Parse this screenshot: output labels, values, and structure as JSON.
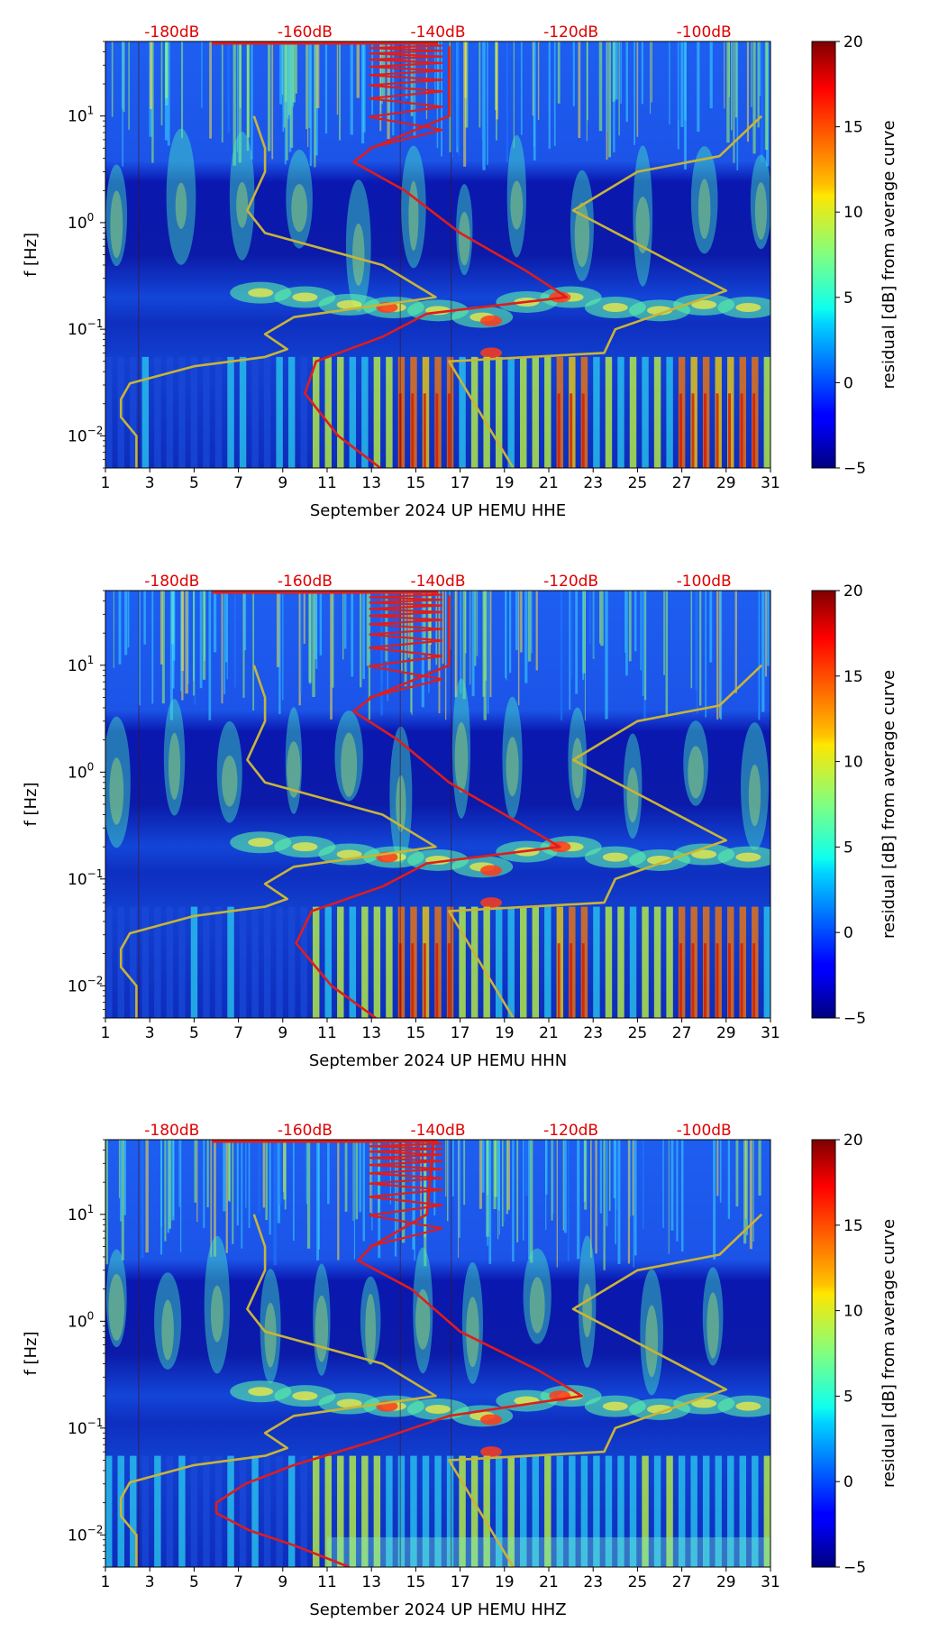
{
  "chart_data": [
    {
      "type": "heatmap",
      "title": "September 2024 UP HEMU HHE",
      "xlabel": "September 2024 UP HEMU  HHE",
      "ylabel": "f [Hz]",
      "x_ticks": [
        "1",
        "3",
        "5",
        "7",
        "9",
        "11",
        "13",
        "15",
        "17",
        "19",
        "21",
        "23",
        "25",
        "27",
        "29",
        "31"
      ],
      "y_ticks": [
        {
          "base": "10",
          "exp": "1",
          "value": 10
        },
        {
          "base": "10",
          "exp": "0",
          "value": 1
        },
        {
          "base": "10",
          "exp": "−1",
          "value": 0.1
        },
        {
          "base": "10",
          "exp": "−2",
          "value": 0.01
        }
      ],
      "xlim": [
        1,
        31
      ],
      "ylim": [
        0.005,
        50
      ],
      "top_axis_labels": [
        "-180dB",
        "-160dB",
        "-140dB",
        "-120dB",
        "-100dB"
      ],
      "colorbar": {
        "label": "residual [dB] from average curve",
        "ticks": [
          "20",
          "15",
          "10",
          "5",
          "0",
          "−5"
        ],
        "range": [
          -5,
          20
        ]
      },
      "series": [
        {
          "name": "noise model (yellow)",
          "color": "#c8b438",
          "points": [
            [
              2.4,
              0.005
            ],
            [
              2.4,
              0.01
            ],
            [
              1.7,
              0.015
            ],
            [
              1.7,
              0.022
            ],
            [
              2.1,
              0.031
            ],
            [
              5,
              0.045
            ],
            [
              8.2,
              0.055
            ],
            [
              9.2,
              0.065
            ],
            [
              8.2,
              0.09
            ],
            [
              9.5,
              0.13
            ],
            [
              15.9,
              0.2
            ],
            [
              13.5,
              0.4
            ],
            [
              8.2,
              0.8
            ],
            [
              7.4,
              1.3
            ],
            [
              8.2,
              3
            ],
            [
              8.2,
              5
            ],
            [
              7.7,
              10
            ]
          ]
        },
        {
          "name": "noise model right (yellow)",
          "color": "#c8b438",
          "points": [
            [
              19.4,
              0.005
            ],
            [
              16.5,
              0.05
            ],
            [
              23.5,
              0.06
            ],
            [
              24,
              0.1
            ],
            [
              29,
              0.23
            ],
            [
              22.1,
              1.3
            ],
            [
              25,
              3
            ],
            [
              28.7,
              4.2
            ],
            [
              30.6,
              10
            ]
          ]
        },
        {
          "name": "average curve (red)",
          "color": "#e01c1c",
          "points": [
            [
              13.4,
              0.005
            ],
            [
              11.5,
              0.01
            ],
            [
              10,
              0.025
            ],
            [
              10.5,
              0.05
            ],
            [
              13.5,
              0.085
            ],
            [
              15.5,
              0.14
            ],
            [
              21.8,
              0.2
            ],
            [
              20,
              0.35
            ],
            [
              17,
              0.8
            ],
            [
              14.5,
              2
            ],
            [
              12.2,
              3.7
            ],
            [
              13,
              5
            ],
            [
              16.5,
              10
            ],
            [
              16.5,
              45
            ]
          ]
        }
      ]
    },
    {
      "type": "heatmap",
      "title": "September 2024 UP HEMU HHN",
      "xlabel": "September 2024 UP HEMU  HHN",
      "ylabel": "f [Hz]",
      "x_ticks": [
        "1",
        "3",
        "5",
        "7",
        "9",
        "11",
        "13",
        "15",
        "17",
        "19",
        "21",
        "23",
        "25",
        "27",
        "29",
        "31"
      ],
      "y_ticks": [
        {
          "base": "10",
          "exp": "1",
          "value": 10
        },
        {
          "base": "10",
          "exp": "0",
          "value": 1
        },
        {
          "base": "10",
          "exp": "−1",
          "value": 0.1
        },
        {
          "base": "10",
          "exp": "−2",
          "value": 0.01
        }
      ],
      "xlim": [
        1,
        31
      ],
      "ylim": [
        0.005,
        50
      ],
      "top_axis_labels": [
        "-180dB",
        "-160dB",
        "-140dB",
        "-120dB",
        "-100dB"
      ],
      "colorbar": {
        "label": "residual [dB] from average curve",
        "ticks": [
          "20",
          "15",
          "10",
          "5",
          "0",
          "−5"
        ],
        "range": [
          -5,
          20
        ]
      },
      "series": [
        {
          "name": "noise model (yellow)",
          "color": "#c8b438",
          "points": [
            [
              2.4,
              0.005
            ],
            [
              2.4,
              0.01
            ],
            [
              1.7,
              0.015
            ],
            [
              1.7,
              0.022
            ],
            [
              2.1,
              0.031
            ],
            [
              5,
              0.045
            ],
            [
              8.2,
              0.055
            ],
            [
              9.2,
              0.065
            ],
            [
              8.2,
              0.09
            ],
            [
              9.5,
              0.13
            ],
            [
              15.9,
              0.2
            ],
            [
              13.5,
              0.4
            ],
            [
              8.2,
              0.8
            ],
            [
              7.4,
              1.3
            ],
            [
              8.2,
              3
            ],
            [
              8.2,
              5
            ],
            [
              7.7,
              10
            ]
          ]
        },
        {
          "name": "noise model right (yellow)",
          "color": "#c8b438",
          "points": [
            [
              19.4,
              0.005
            ],
            [
              16.5,
              0.05
            ],
            [
              23.5,
              0.06
            ],
            [
              24,
              0.1
            ],
            [
              29,
              0.23
            ],
            [
              22.1,
              1.3
            ],
            [
              25,
              3
            ],
            [
              28.7,
              4.2
            ],
            [
              30.6,
              10
            ]
          ]
        },
        {
          "name": "average curve (red)",
          "color": "#e01c1c",
          "points": [
            [
              13.2,
              0.005
            ],
            [
              11.2,
              0.01
            ],
            [
              9.6,
              0.025
            ],
            [
              10.3,
              0.05
            ],
            [
              13.5,
              0.085
            ],
            [
              15.5,
              0.14
            ],
            [
              21.5,
              0.2
            ],
            [
              19.5,
              0.35
            ],
            [
              16.5,
              0.8
            ],
            [
              14.2,
              2
            ],
            [
              12.2,
              3.7
            ],
            [
              13,
              5
            ],
            [
              16.5,
              10
            ],
            [
              16.5,
              45
            ]
          ]
        }
      ]
    },
    {
      "type": "heatmap",
      "title": "September 2024 UP HEMU HHZ",
      "xlabel": "September 2024 UP HEMU  HHZ",
      "ylabel": "f [Hz]",
      "x_ticks": [
        "1",
        "3",
        "5",
        "7",
        "9",
        "11",
        "13",
        "15",
        "17",
        "19",
        "21",
        "23",
        "25",
        "27",
        "29",
        "31"
      ],
      "y_ticks": [
        {
          "base": "10",
          "exp": "1",
          "value": 10
        },
        {
          "base": "10",
          "exp": "0",
          "value": 1
        },
        {
          "base": "10",
          "exp": "−1",
          "value": 0.1
        },
        {
          "base": "10",
          "exp": "−2",
          "value": 0.01
        }
      ],
      "xlim": [
        1,
        31
      ],
      "ylim": [
        0.005,
        50
      ],
      "top_axis_labels": [
        "-180dB",
        "-160dB",
        "-140dB",
        "-120dB",
        "-100dB"
      ],
      "colorbar": {
        "label": "residual [dB] from average curve",
        "ticks": [
          "20",
          "15",
          "10",
          "5",
          "0",
          "−5"
        ],
        "range": [
          -5,
          20
        ]
      },
      "series": [
        {
          "name": "noise model (yellow)",
          "color": "#c8b438",
          "points": [
            [
              2.4,
              0.005
            ],
            [
              2.4,
              0.01
            ],
            [
              1.7,
              0.015
            ],
            [
              1.7,
              0.022
            ],
            [
              2.1,
              0.031
            ],
            [
              5,
              0.045
            ],
            [
              8.2,
              0.055
            ],
            [
              9.2,
              0.065
            ],
            [
              8.2,
              0.09
            ],
            [
              9.5,
              0.13
            ],
            [
              15.9,
              0.2
            ],
            [
              13.5,
              0.4
            ],
            [
              8.2,
              0.8
            ],
            [
              7.4,
              1.3
            ],
            [
              8.2,
              3
            ],
            [
              8.2,
              5
            ],
            [
              7.7,
              10
            ]
          ]
        },
        {
          "name": "noise model right (yellow)",
          "color": "#c8b438",
          "points": [
            [
              19.4,
              0.005
            ],
            [
              16.5,
              0.05
            ],
            [
              23.5,
              0.06
            ],
            [
              24,
              0.1
            ],
            [
              29,
              0.23
            ],
            [
              22.1,
              1.3
            ],
            [
              25,
              3
            ],
            [
              28.7,
              4.2
            ],
            [
              30.6,
              10
            ]
          ]
        },
        {
          "name": "average curve (red)",
          "color": "#e01c1c",
          "points": [
            [
              12,
              0.005
            ],
            [
              9.5,
              0.008
            ],
            [
              7.5,
              0.011
            ],
            [
              6,
              0.016
            ],
            [
              6,
              0.02
            ],
            [
              7.3,
              0.03
            ],
            [
              9.5,
              0.045
            ],
            [
              13.5,
              0.08
            ],
            [
              16.5,
              0.13
            ],
            [
              22.5,
              0.2
            ],
            [
              20.5,
              0.35
            ],
            [
              17,
              0.8
            ],
            [
              14.8,
              2
            ],
            [
              12.4,
              3.7
            ],
            [
              13,
              5
            ],
            [
              15.5,
              10
            ],
            [
              15.8,
              45
            ]
          ]
        }
      ]
    }
  ]
}
